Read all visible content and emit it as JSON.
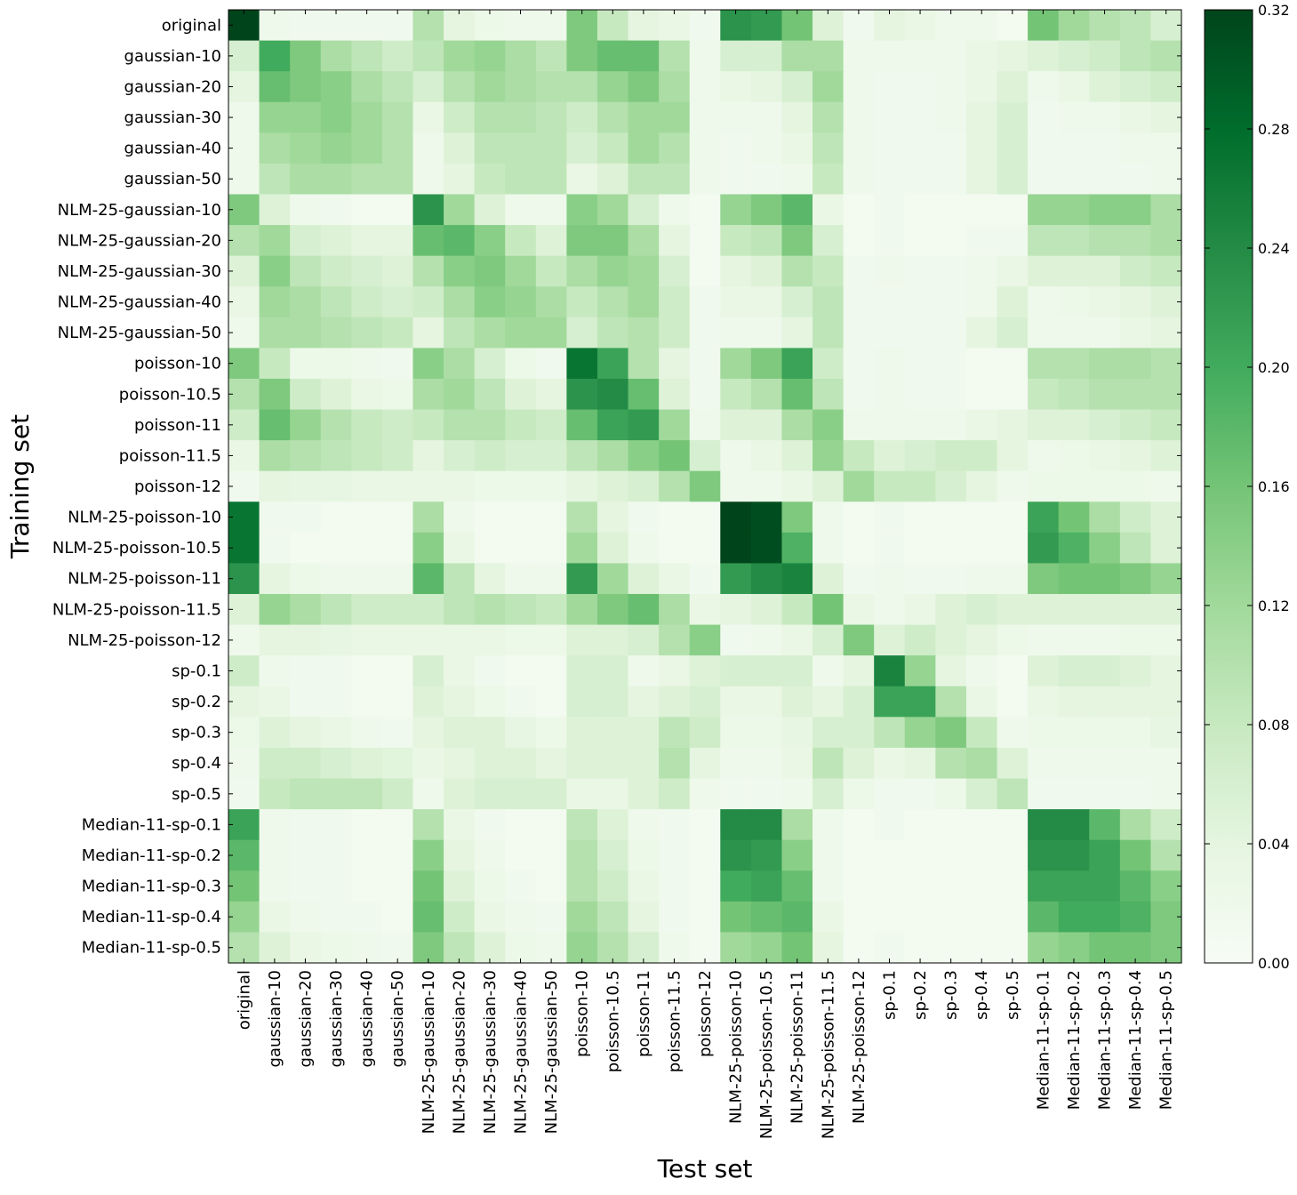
{
  "chart_data": {
    "type": "heatmap",
    "xlabel": "Test set",
    "ylabel": "Training set",
    "colormap": "Greens",
    "colormap_stops": [
      "#f7fcf5",
      "#e5f5e0",
      "#c7e9c0",
      "#a1d99b",
      "#74c476",
      "#41ab5d",
      "#238b45",
      "#006d2c",
      "#00441b"
    ],
    "vmin": 0.0,
    "vmax": 0.32,
    "colorbar_ticks": [
      0.0,
      0.04,
      0.08,
      0.12,
      0.16,
      0.2,
      0.24,
      0.28,
      0.32
    ],
    "colorbar_tick_labels": [
      "0.00",
      "0.04",
      "0.08",
      "0.12",
      "0.16",
      "0.20",
      "0.24",
      "0.28",
      "0.32"
    ],
    "x_categories": [
      "original",
      "gaussian-10",
      "gaussian-20",
      "gaussian-30",
      "gaussian-40",
      "gaussian-50",
      "NLM-25-gaussian-10",
      "NLM-25-gaussian-20",
      "NLM-25-gaussian-30",
      "NLM-25-gaussian-40",
      "NLM-25-gaussian-50",
      "poisson-10",
      "poisson-10.5",
      "poisson-11",
      "poisson-11.5",
      "poisson-12",
      "NLM-25-poisson-10",
      "NLM-25-poisson-10.5",
      "NLM-25-poisson-11",
      "NLM-25-poisson-11.5",
      "NLM-25-poisson-12",
      "sp-0.1",
      "sp-0.2",
      "sp-0.3",
      "sp-0.4",
      "sp-0.5",
      "Median-11-sp-0.1",
      "Median-11-sp-0.2",
      "Median-11-sp-0.3",
      "Median-11-sp-0.4",
      "Median-11-sp-0.5"
    ],
    "y_categories": [
      "original",
      "gaussian-10",
      "gaussian-20",
      "gaussian-30",
      "gaussian-40",
      "gaussian-50",
      "NLM-25-gaussian-10",
      "NLM-25-gaussian-20",
      "NLM-25-gaussian-30",
      "NLM-25-gaussian-40",
      "NLM-25-gaussian-50",
      "poisson-10",
      "poisson-10.5",
      "poisson-11",
      "poisson-11.5",
      "poisson-12",
      "NLM-25-poisson-10",
      "NLM-25-poisson-10.5",
      "NLM-25-poisson-11",
      "NLM-25-poisson-11.5",
      "NLM-25-poisson-12",
      "sp-0.1",
      "sp-0.2",
      "sp-0.3",
      "sp-0.4",
      "sp-0.5",
      "Median-11-sp-0.1",
      "Median-11-sp-0.2",
      "Median-11-sp-0.3",
      "Median-11-sp-0.4",
      "Median-11-sp-0.5"
    ],
    "values": [
      [
        0.32,
        0.02,
        0.015,
        0.015,
        0.015,
        0.015,
        0.1,
        0.04,
        0.025,
        0.02,
        0.02,
        0.15,
        0.08,
        0.04,
        0.03,
        0.015,
        0.23,
        0.22,
        0.16,
        0.05,
        0.015,
        0.04,
        0.03,
        0.02,
        0.02,
        0.01,
        0.16,
        0.12,
        0.1,
        0.09,
        0.06
      ],
      [
        0.06,
        0.2,
        0.15,
        0.11,
        0.09,
        0.07,
        0.09,
        0.12,
        0.13,
        0.11,
        0.09,
        0.15,
        0.17,
        0.17,
        0.1,
        0.02,
        0.06,
        0.06,
        0.11,
        0.11,
        0.02,
        0.02,
        0.02,
        0.02,
        0.03,
        0.04,
        0.05,
        0.06,
        0.07,
        0.09,
        0.1
      ],
      [
        0.04,
        0.17,
        0.15,
        0.14,
        0.11,
        0.09,
        0.06,
        0.1,
        0.12,
        0.11,
        0.1,
        0.1,
        0.13,
        0.15,
        0.11,
        0.02,
        0.03,
        0.04,
        0.06,
        0.12,
        0.02,
        0.015,
        0.015,
        0.02,
        0.03,
        0.05,
        0.02,
        0.03,
        0.05,
        0.06,
        0.07
      ],
      [
        0.02,
        0.13,
        0.13,
        0.14,
        0.12,
        0.1,
        0.03,
        0.07,
        0.1,
        0.1,
        0.09,
        0.07,
        0.1,
        0.12,
        0.12,
        0.02,
        0.02,
        0.02,
        0.04,
        0.1,
        0.02,
        0.015,
        0.015,
        0.02,
        0.04,
        0.06,
        0.015,
        0.02,
        0.02,
        0.03,
        0.04
      ],
      [
        0.02,
        0.11,
        0.12,
        0.13,
        0.12,
        0.1,
        0.02,
        0.05,
        0.09,
        0.09,
        0.09,
        0.06,
        0.08,
        0.12,
        0.1,
        0.02,
        0.015,
        0.02,
        0.03,
        0.09,
        0.02,
        0.015,
        0.015,
        0.015,
        0.04,
        0.06,
        0.015,
        0.015,
        0.015,
        0.02,
        0.02
      ],
      [
        0.02,
        0.09,
        0.11,
        0.11,
        0.1,
        0.1,
        0.02,
        0.04,
        0.08,
        0.09,
        0.09,
        0.03,
        0.05,
        0.09,
        0.09,
        0.02,
        0.015,
        0.015,
        0.02,
        0.08,
        0.02,
        0.015,
        0.015,
        0.015,
        0.04,
        0.06,
        0.015,
        0.015,
        0.015,
        0.015,
        0.02
      ],
      [
        0.15,
        0.05,
        0.02,
        0.015,
        0.01,
        0.01,
        0.23,
        0.12,
        0.05,
        0.02,
        0.02,
        0.14,
        0.12,
        0.06,
        0.02,
        0.01,
        0.13,
        0.15,
        0.18,
        0.03,
        0.01,
        0.015,
        0.01,
        0.01,
        0.01,
        0.01,
        0.13,
        0.13,
        0.14,
        0.14,
        0.11
      ],
      [
        0.1,
        0.12,
        0.06,
        0.05,
        0.04,
        0.04,
        0.17,
        0.18,
        0.14,
        0.08,
        0.05,
        0.15,
        0.15,
        0.11,
        0.04,
        0.01,
        0.08,
        0.09,
        0.15,
        0.06,
        0.01,
        0.015,
        0.01,
        0.01,
        0.015,
        0.015,
        0.09,
        0.09,
        0.1,
        0.1,
        0.11
      ],
      [
        0.05,
        0.14,
        0.09,
        0.07,
        0.06,
        0.05,
        0.1,
        0.14,
        0.15,
        0.12,
        0.08,
        0.11,
        0.13,
        0.12,
        0.06,
        0.01,
        0.04,
        0.05,
        0.1,
        0.08,
        0.015,
        0.02,
        0.015,
        0.015,
        0.02,
        0.03,
        0.05,
        0.05,
        0.05,
        0.07,
        0.08
      ],
      [
        0.03,
        0.12,
        0.11,
        0.09,
        0.07,
        0.06,
        0.07,
        0.11,
        0.14,
        0.13,
        0.11,
        0.08,
        0.1,
        0.12,
        0.07,
        0.015,
        0.03,
        0.03,
        0.06,
        0.09,
        0.015,
        0.015,
        0.015,
        0.015,
        0.02,
        0.05,
        0.02,
        0.025,
        0.03,
        0.04,
        0.05
      ],
      [
        0.02,
        0.11,
        0.11,
        0.1,
        0.09,
        0.08,
        0.04,
        0.09,
        0.11,
        0.12,
        0.12,
        0.06,
        0.09,
        0.1,
        0.07,
        0.015,
        0.02,
        0.02,
        0.04,
        0.09,
        0.015,
        0.015,
        0.015,
        0.015,
        0.04,
        0.06,
        0.02,
        0.02,
        0.02,
        0.03,
        0.04
      ],
      [
        0.15,
        0.08,
        0.025,
        0.025,
        0.02,
        0.015,
        0.14,
        0.11,
        0.06,
        0.025,
        0.015,
        0.27,
        0.21,
        0.1,
        0.04,
        0.015,
        0.12,
        0.15,
        0.21,
        0.07,
        0.015,
        0.02,
        0.015,
        0.015,
        0.01,
        0.01,
        0.1,
        0.1,
        0.11,
        0.11,
        0.1
      ],
      [
        0.1,
        0.15,
        0.07,
        0.05,
        0.03,
        0.025,
        0.11,
        0.12,
        0.09,
        0.05,
        0.04,
        0.23,
        0.24,
        0.17,
        0.05,
        0.015,
        0.08,
        0.1,
        0.17,
        0.09,
        0.015,
        0.02,
        0.015,
        0.015,
        0.01,
        0.01,
        0.08,
        0.09,
        0.1,
        0.1,
        0.1
      ],
      [
        0.07,
        0.17,
        0.13,
        0.1,
        0.08,
        0.07,
        0.08,
        0.1,
        0.1,
        0.08,
        0.07,
        0.17,
        0.21,
        0.22,
        0.12,
        0.02,
        0.05,
        0.05,
        0.11,
        0.14,
        0.02,
        0.02,
        0.02,
        0.02,
        0.03,
        0.04,
        0.05,
        0.05,
        0.06,
        0.07,
        0.08
      ],
      [
        0.03,
        0.11,
        0.1,
        0.09,
        0.08,
        0.07,
        0.04,
        0.06,
        0.07,
        0.06,
        0.06,
        0.09,
        0.11,
        0.14,
        0.16,
        0.06,
        0.02,
        0.03,
        0.05,
        0.13,
        0.08,
        0.05,
        0.06,
        0.07,
        0.07,
        0.04,
        0.02,
        0.025,
        0.03,
        0.04,
        0.05
      ],
      [
        0.015,
        0.04,
        0.035,
        0.035,
        0.03,
        0.03,
        0.03,
        0.03,
        0.025,
        0.025,
        0.025,
        0.04,
        0.05,
        0.06,
        0.1,
        0.15,
        0.02,
        0.02,
        0.03,
        0.05,
        0.12,
        0.08,
        0.08,
        0.06,
        0.04,
        0.02,
        0.025,
        0.025,
        0.025,
        0.025,
        0.02
      ],
      [
        0.27,
        0.015,
        0.015,
        0.01,
        0.01,
        0.01,
        0.11,
        0.02,
        0.01,
        0.01,
        0.01,
        0.1,
        0.04,
        0.015,
        0.01,
        0.01,
        0.32,
        0.31,
        0.15,
        0.02,
        0.01,
        0.015,
        0.01,
        0.01,
        0.01,
        0.01,
        0.21,
        0.16,
        0.11,
        0.07,
        0.05
      ],
      [
        0.27,
        0.015,
        0.01,
        0.01,
        0.01,
        0.01,
        0.14,
        0.03,
        0.01,
        0.01,
        0.01,
        0.12,
        0.05,
        0.02,
        0.01,
        0.01,
        0.32,
        0.31,
        0.19,
        0.02,
        0.01,
        0.015,
        0.01,
        0.01,
        0.01,
        0.01,
        0.22,
        0.19,
        0.14,
        0.09,
        0.05
      ],
      [
        0.23,
        0.04,
        0.025,
        0.02,
        0.02,
        0.02,
        0.18,
        0.09,
        0.04,
        0.02,
        0.02,
        0.22,
        0.12,
        0.05,
        0.03,
        0.015,
        0.22,
        0.24,
        0.25,
        0.05,
        0.015,
        0.02,
        0.015,
        0.015,
        0.02,
        0.02,
        0.15,
        0.16,
        0.16,
        0.15,
        0.13
      ],
      [
        0.05,
        0.13,
        0.11,
        0.09,
        0.07,
        0.07,
        0.07,
        0.09,
        0.1,
        0.09,
        0.08,
        0.12,
        0.15,
        0.17,
        0.11,
        0.03,
        0.04,
        0.05,
        0.08,
        0.16,
        0.03,
        0.02,
        0.03,
        0.05,
        0.06,
        0.05,
        0.05,
        0.05,
        0.05,
        0.05,
        0.05
      ],
      [
        0.02,
        0.04,
        0.04,
        0.035,
        0.03,
        0.03,
        0.03,
        0.03,
        0.03,
        0.025,
        0.025,
        0.05,
        0.05,
        0.06,
        0.1,
        0.14,
        0.015,
        0.02,
        0.03,
        0.06,
        0.15,
        0.05,
        0.07,
        0.05,
        0.04,
        0.025,
        0.02,
        0.02,
        0.02,
        0.025,
        0.025
      ],
      [
        0.07,
        0.02,
        0.015,
        0.015,
        0.01,
        0.01,
        0.06,
        0.03,
        0.015,
        0.01,
        0.01,
        0.06,
        0.06,
        0.02,
        0.03,
        0.05,
        0.06,
        0.06,
        0.06,
        0.02,
        0.04,
        0.25,
        0.13,
        0.04,
        0.02,
        0.01,
        0.05,
        0.06,
        0.06,
        0.05,
        0.04
      ],
      [
        0.04,
        0.03,
        0.015,
        0.015,
        0.01,
        0.01,
        0.05,
        0.04,
        0.025,
        0.015,
        0.01,
        0.06,
        0.06,
        0.04,
        0.05,
        0.06,
        0.03,
        0.03,
        0.05,
        0.04,
        0.06,
        0.21,
        0.21,
        0.1,
        0.03,
        0.01,
        0.03,
        0.04,
        0.04,
        0.04,
        0.04
      ],
      [
        0.025,
        0.05,
        0.04,
        0.03,
        0.02,
        0.015,
        0.04,
        0.05,
        0.05,
        0.035,
        0.025,
        0.05,
        0.05,
        0.05,
        0.09,
        0.07,
        0.025,
        0.025,
        0.035,
        0.06,
        0.06,
        0.09,
        0.13,
        0.15,
        0.08,
        0.02,
        0.025,
        0.025,
        0.025,
        0.025,
        0.035
      ],
      [
        0.02,
        0.07,
        0.07,
        0.06,
        0.05,
        0.045,
        0.03,
        0.04,
        0.05,
        0.05,
        0.04,
        0.05,
        0.05,
        0.05,
        0.1,
        0.04,
        0.02,
        0.02,
        0.03,
        0.09,
        0.05,
        0.03,
        0.04,
        0.1,
        0.11,
        0.05,
        0.02,
        0.02,
        0.02,
        0.02,
        0.02
      ],
      [
        0.015,
        0.08,
        0.09,
        0.09,
        0.09,
        0.07,
        0.02,
        0.05,
        0.06,
        0.06,
        0.06,
        0.03,
        0.03,
        0.05,
        0.07,
        0.02,
        0.015,
        0.015,
        0.02,
        0.06,
        0.025,
        0.015,
        0.015,
        0.025,
        0.06,
        0.09,
        0.015,
        0.015,
        0.015,
        0.015,
        0.02
      ],
      [
        0.21,
        0.02,
        0.015,
        0.015,
        0.01,
        0.01,
        0.1,
        0.03,
        0.015,
        0.01,
        0.01,
        0.09,
        0.05,
        0.02,
        0.015,
        0.01,
        0.24,
        0.24,
        0.11,
        0.02,
        0.01,
        0.015,
        0.01,
        0.01,
        0.01,
        0.01,
        0.24,
        0.24,
        0.18,
        0.11,
        0.07
      ],
      [
        0.18,
        0.02,
        0.015,
        0.015,
        0.01,
        0.01,
        0.14,
        0.04,
        0.02,
        0.01,
        0.01,
        0.1,
        0.06,
        0.025,
        0.015,
        0.01,
        0.23,
        0.22,
        0.14,
        0.02,
        0.01,
        0.01,
        0.01,
        0.01,
        0.01,
        0.01,
        0.23,
        0.23,
        0.21,
        0.16,
        0.1
      ],
      [
        0.16,
        0.02,
        0.015,
        0.015,
        0.01,
        0.01,
        0.16,
        0.05,
        0.025,
        0.015,
        0.01,
        0.1,
        0.07,
        0.03,
        0.015,
        0.01,
        0.2,
        0.21,
        0.17,
        0.02,
        0.01,
        0.01,
        0.01,
        0.01,
        0.01,
        0.01,
        0.21,
        0.21,
        0.21,
        0.18,
        0.14
      ],
      [
        0.13,
        0.03,
        0.02,
        0.015,
        0.015,
        0.01,
        0.17,
        0.07,
        0.03,
        0.02,
        0.015,
        0.12,
        0.09,
        0.04,
        0.015,
        0.01,
        0.16,
        0.17,
        0.18,
        0.03,
        0.01,
        0.01,
        0.01,
        0.01,
        0.01,
        0.01,
        0.18,
        0.2,
        0.2,
        0.19,
        0.15
      ],
      [
        0.1,
        0.05,
        0.03,
        0.025,
        0.02,
        0.015,
        0.15,
        0.09,
        0.05,
        0.025,
        0.02,
        0.13,
        0.1,
        0.06,
        0.02,
        0.01,
        0.12,
        0.13,
        0.16,
        0.04,
        0.01,
        0.015,
        0.01,
        0.01,
        0.01,
        0.01,
        0.13,
        0.14,
        0.16,
        0.16,
        0.15
      ]
    ]
  }
}
